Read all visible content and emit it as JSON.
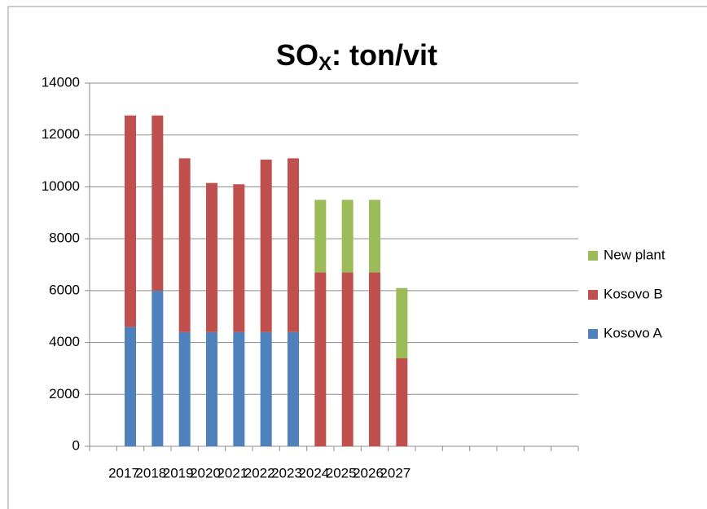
{
  "chart_data": {
    "type": "stacked_bar",
    "title_parts": [
      "SO",
      "X",
      ":  ton/vit"
    ],
    "categories": [
      null,
      "2017",
      "2018",
      "2019",
      "2020",
      "2021",
      "2022",
      "2023",
      "2024",
      "2025",
      "2026",
      "2027",
      null,
      null,
      null,
      null,
      null,
      null
    ],
    "series": [
      {
        "name": "Kosovo A",
        "color": "#4f81bd",
        "values": [
          null,
          4600,
          6000,
          4400,
          4400,
          4400,
          4400,
          4400,
          0,
          0,
          0,
          0,
          null,
          null,
          null,
          null,
          null,
          null
        ]
      },
      {
        "name": "Kosovo B",
        "color": "#c0504d",
        "values": [
          null,
          8150,
          6750,
          6700,
          5750,
          5700,
          6650,
          6700,
          6700,
          6700,
          6700,
          3400,
          null,
          null,
          null,
          null,
          null,
          null
        ]
      },
      {
        "name": "New plant",
        "color": "#9bbb59",
        "values": [
          null,
          0,
          0,
          0,
          0,
          0,
          0,
          0,
          2800,
          2800,
          2800,
          2700,
          null,
          null,
          null,
          null,
          null,
          null
        ]
      }
    ],
    "ylim": [
      0,
      14000
    ],
    "yticks": [
      0,
      2000,
      4000,
      6000,
      8000,
      10000,
      12000,
      14000
    ],
    "grid": true,
    "legend": "right"
  }
}
